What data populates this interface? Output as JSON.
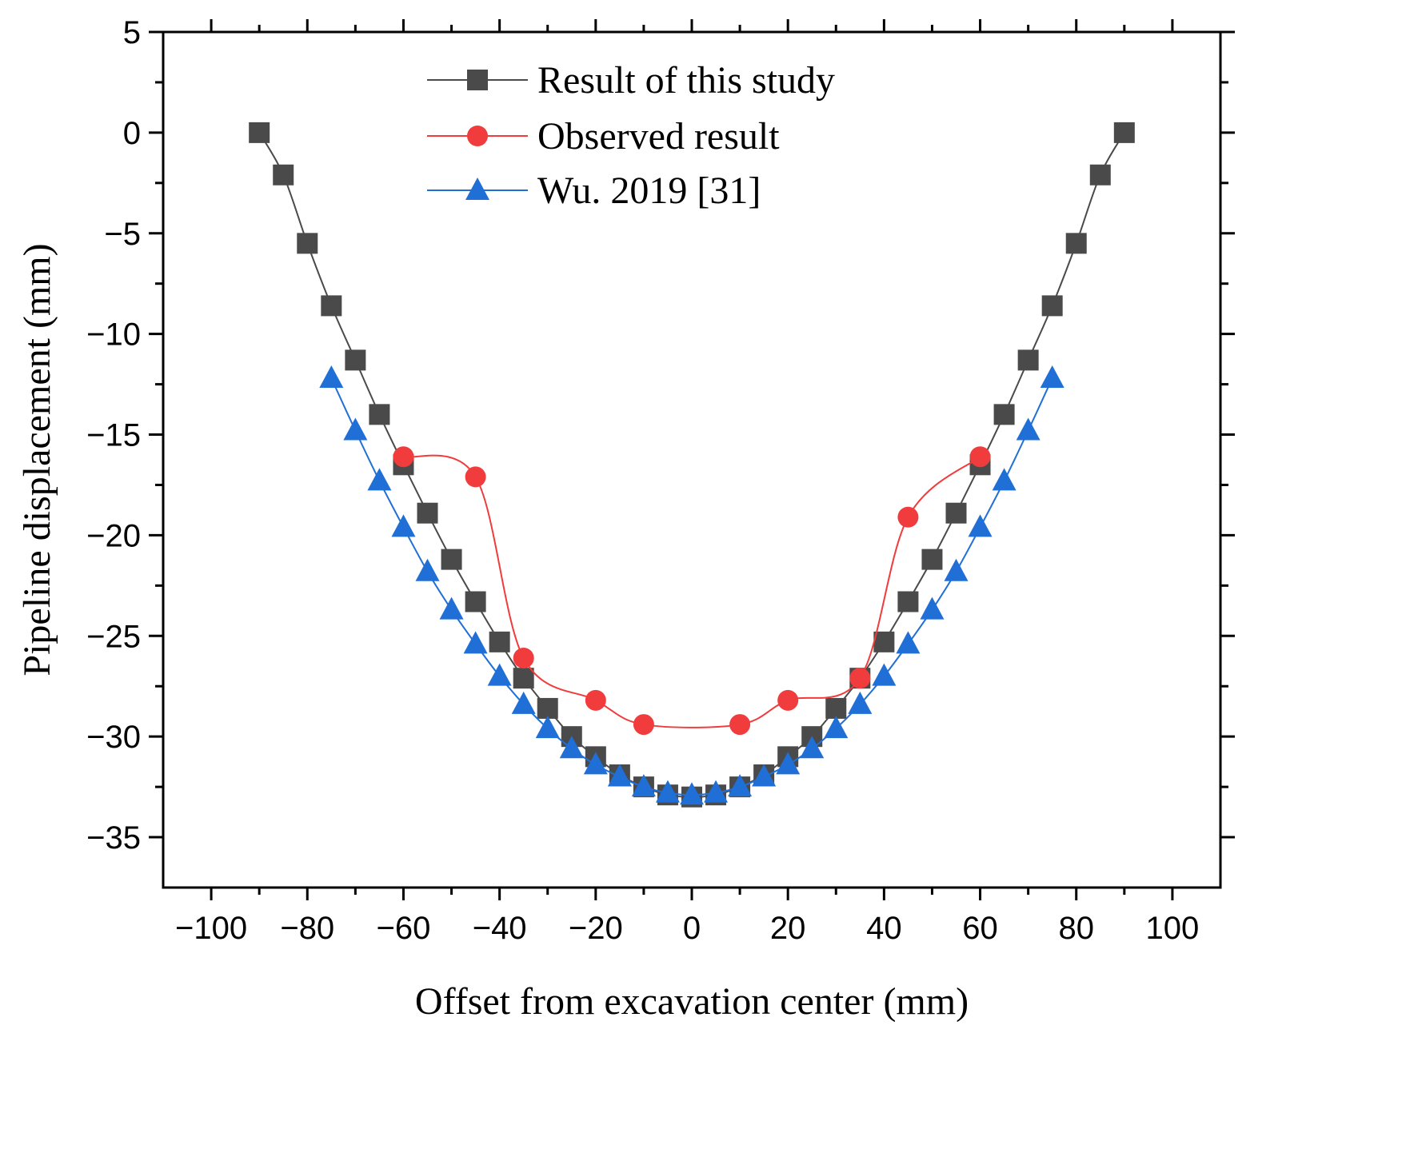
{
  "chart_data": {
    "type": "line",
    "title": "",
    "xlabel": "Offset from excavation center (mm)",
    "ylabel": "Pipeline displacement (mm)",
    "xlim": [
      -110,
      110
    ],
    "ylim": [
      -37.5,
      5
    ],
    "xticks": [
      -100,
      -80,
      -60,
      -40,
      -20,
      0,
      20,
      40,
      60,
      80,
      100
    ],
    "xtick_labels": [
      "−100",
      "−80",
      "−60",
      "−40",
      "−20",
      "0",
      "20",
      "40",
      "60",
      "80",
      "100"
    ],
    "yticks": [
      5,
      0,
      -5,
      -10,
      -15,
      -20,
      -25,
      -30,
      -35
    ],
    "ytick_labels": [
      "5",
      "0",
      "−5",
      "−10",
      "−15",
      "−20",
      "−25",
      "−30",
      "−35"
    ],
    "grid": false,
    "legend_position": "top-center",
    "series": [
      {
        "name": "Result of this study",
        "color": "#4a4a4a",
        "marker": "square",
        "x": [
          -90,
          -85,
          -80,
          -75,
          -70,
          -65,
          -60,
          -55,
          -50,
          -45,
          -40,
          -35,
          -30,
          -25,
          -20,
          -15,
          -10,
          -5,
          0,
          5,
          10,
          15,
          20,
          25,
          30,
          35,
          40,
          45,
          50,
          55,
          60,
          65,
          70,
          75,
          80,
          85,
          90
        ],
        "y": [
          0,
          -2.1,
          -5.5,
          -8.6,
          -11.3,
          -14.0,
          -16.5,
          -18.9,
          -21.2,
          -23.3,
          -25.3,
          -27.1,
          -28.6,
          -30.0,
          -31.0,
          -31.9,
          -32.5,
          -32.9,
          -33.0,
          -32.9,
          -32.5,
          -31.9,
          -31.0,
          -30.0,
          -28.6,
          -27.1,
          -25.3,
          -23.3,
          -21.2,
          -18.9,
          -16.5,
          -14.0,
          -11.3,
          -8.6,
          -5.5,
          -2.1,
          0
        ]
      },
      {
        "name": "Observed result",
        "color": "#f03c3c",
        "marker": "circle",
        "x": [
          -60,
          -45,
          -35,
          -20,
          -10,
          10,
          20,
          35,
          45,
          60
        ],
        "y": [
          -16.1,
          -17.1,
          -26.1,
          -28.2,
          -29.4,
          -29.4,
          -28.2,
          -27.1,
          -19.1,
          -16.1
        ]
      },
      {
        "name": "Wu. 2019 [31]",
        "color": "#1f6fd6",
        "marker": "triangle",
        "x": [
          -75,
          -70,
          -65,
          -60,
          -55,
          -50,
          -45,
          -40,
          -35,
          -30,
          -25,
          -20,
          -15,
          -10,
          -5,
          0,
          5,
          10,
          15,
          20,
          25,
          30,
          35,
          40,
          45,
          50,
          55,
          60,
          65,
          70,
          75
        ],
        "y": [
          -12.2,
          -14.8,
          -17.3,
          -19.6,
          -21.8,
          -23.7,
          -25.4,
          -27.0,
          -28.4,
          -29.6,
          -30.6,
          -31.4,
          -32.0,
          -32.5,
          -32.8,
          -32.9,
          -32.8,
          -32.5,
          -32.0,
          -31.4,
          -30.6,
          -29.6,
          -28.4,
          -27.0,
          -25.4,
          -23.7,
          -21.8,
          -19.6,
          -17.3,
          -14.8,
          -12.2
        ]
      }
    ]
  }
}
